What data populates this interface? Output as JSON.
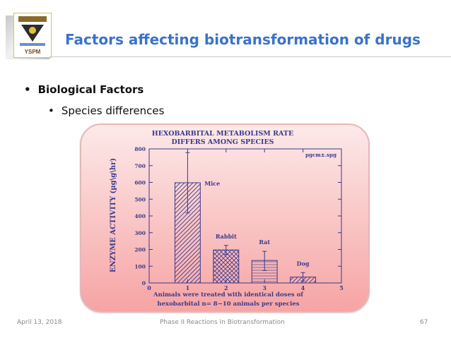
{
  "slide": {
    "title": "Factors affecting biotransformation of drugs",
    "bullets": [
      "Biological Factors",
      "Species differences"
    ],
    "bullet_marker": "•"
  },
  "logo": {
    "text": "YSPM"
  },
  "footer": {
    "date": "April 13, 2018",
    "center": "Phase II Reactions In Biotransformation",
    "page": "67"
  },
  "colors": {
    "title": "#3a73c8",
    "chart_ink": "#3a3a8a",
    "card_top": "#fde9e9",
    "card_bottom": "#f6a4a4"
  },
  "chart_data": {
    "type": "bar",
    "title_lines": [
      "HEXOBARBITAL METABOLISM RATE",
      "DIFFERS AMONG SPECIES"
    ],
    "annotation": "µgcm±.sµg",
    "ylabel": "ENZYME ACTIVITY (µg\\g\\hr)",
    "xlabel_lines": [
      "Animals were treated with identical doses of",
      "hexobarbital   n= 8−10 animals per species"
    ],
    "x_ticks": [
      "0",
      "1",
      "2",
      "3",
      "4",
      "5"
    ],
    "y_ticks": [
      "0",
      "100",
      "200",
      "300",
      "400",
      "500",
      "600",
      "700",
      "800"
    ],
    "xlim": [
      0,
      5
    ],
    "ylim": [
      0,
      800
    ],
    "grid": false,
    "bars": [
      {
        "label": "Mice",
        "x": 1,
        "value": 598,
        "err_low": 418,
        "err_high": 778,
        "pattern": "diag"
      },
      {
        "label": "Rabbit",
        "x": 2,
        "value": 197,
        "err_low": 170,
        "err_high": 224,
        "pattern": "cross"
      },
      {
        "label": "Rat",
        "x": 3,
        "value": 134,
        "err_low": 74,
        "err_high": 189,
        "pattern": "horiz"
      },
      {
        "label": "Dog",
        "x": 4,
        "value": 35,
        "err_low": 12,
        "err_high": 62,
        "pattern": "diag"
      }
    ]
  }
}
